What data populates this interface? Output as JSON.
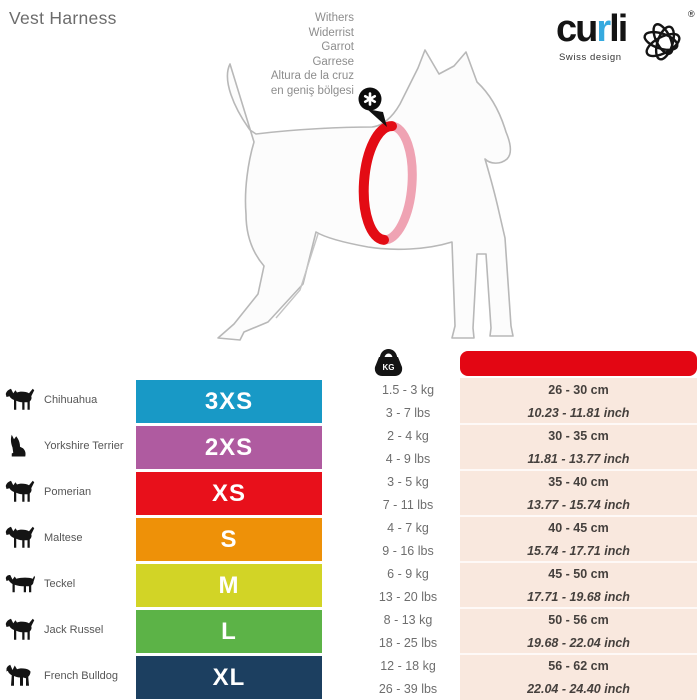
{
  "page": {
    "title": "Vest Harness"
  },
  "brand": {
    "prefix": "cu",
    "highlight": "r",
    "suffix": "li",
    "tagline": "Swiss design",
    "registered": "®",
    "accent_color": "#36aadf",
    "flower_icon": "flower-scribble-icon"
  },
  "diagram": {
    "labels": [
      "Withers",
      "Widerrist",
      "Garrot",
      "Garrese",
      "Altura de la cruz",
      "en geniş bölgesi"
    ],
    "marker_icon": "asterisk-icon",
    "ring_color": "#e30b14",
    "ring_back_color": "#efa3b3"
  },
  "table": {
    "weight_icon": "weight-kg-icon",
    "weight_icon_label": "KG",
    "girth_header_color": "#e30613",
    "girth_panel_color": "#f9e8de",
    "rows": [
      {
        "breed": "Chihuahua",
        "icon": "chihuahua-icon",
        "size": "3XS",
        "color": "#1899c6",
        "weight_kg": "1.5 - 3 kg",
        "weight_lbs": "3 - 7 lbs",
        "girth_cm": "26 - 30 cm",
        "girth_inch": "10.23 - 11.81 inch"
      },
      {
        "breed": "Yorkshire Terrier",
        "icon": "yorkshire-terrier-icon",
        "size": "2XS",
        "color": "#af5ba0",
        "weight_kg": "2 - 4 kg",
        "weight_lbs": "4 - 9 lbs",
        "girth_cm": "30 - 35 cm",
        "girth_inch": "11.81 - 13.77 inch"
      },
      {
        "breed": "Pomerian",
        "icon": "pomerian-icon",
        "size": "XS",
        "color": "#e8101b",
        "weight_kg": "3 - 5 kg",
        "weight_lbs": "7 - 11 lbs",
        "girth_cm": "35 - 40 cm",
        "girth_inch": "13.77 - 15.74 inch"
      },
      {
        "breed": "Maltese",
        "icon": "maltese-icon",
        "size": "S",
        "color": "#ee9108",
        "weight_kg": "4 - 7 kg",
        "weight_lbs": "9 - 16 lbs",
        "girth_cm": "40 - 45 cm",
        "girth_inch": "15.74 - 17.71 inch"
      },
      {
        "breed": "Teckel",
        "icon": "teckel-icon",
        "size": "M",
        "color": "#d2d426",
        "weight_kg": "6 - 9 kg",
        "weight_lbs": "13 - 20 lbs",
        "girth_cm": "45 - 50 cm",
        "girth_inch": "17.71 - 19.68 inch"
      },
      {
        "breed": "Jack Russel",
        "icon": "jack-russel-icon",
        "size": "L",
        "color": "#5cb347",
        "weight_kg": "8 - 13 kg",
        "weight_lbs": "18 - 25 lbs",
        "girth_cm": "50 - 56 cm",
        "girth_inch": "19.68 - 22.04 inch"
      },
      {
        "breed": "French Bulldog",
        "icon": "french-bulldog-icon",
        "size": "XL",
        "color": "#1c3f60",
        "weight_kg": "12 - 18 kg",
        "weight_lbs": "26 - 39 lbs",
        "girth_cm": "56 - 62 cm",
        "girth_inch": "22.04 - 24.40 inch"
      }
    ]
  }
}
